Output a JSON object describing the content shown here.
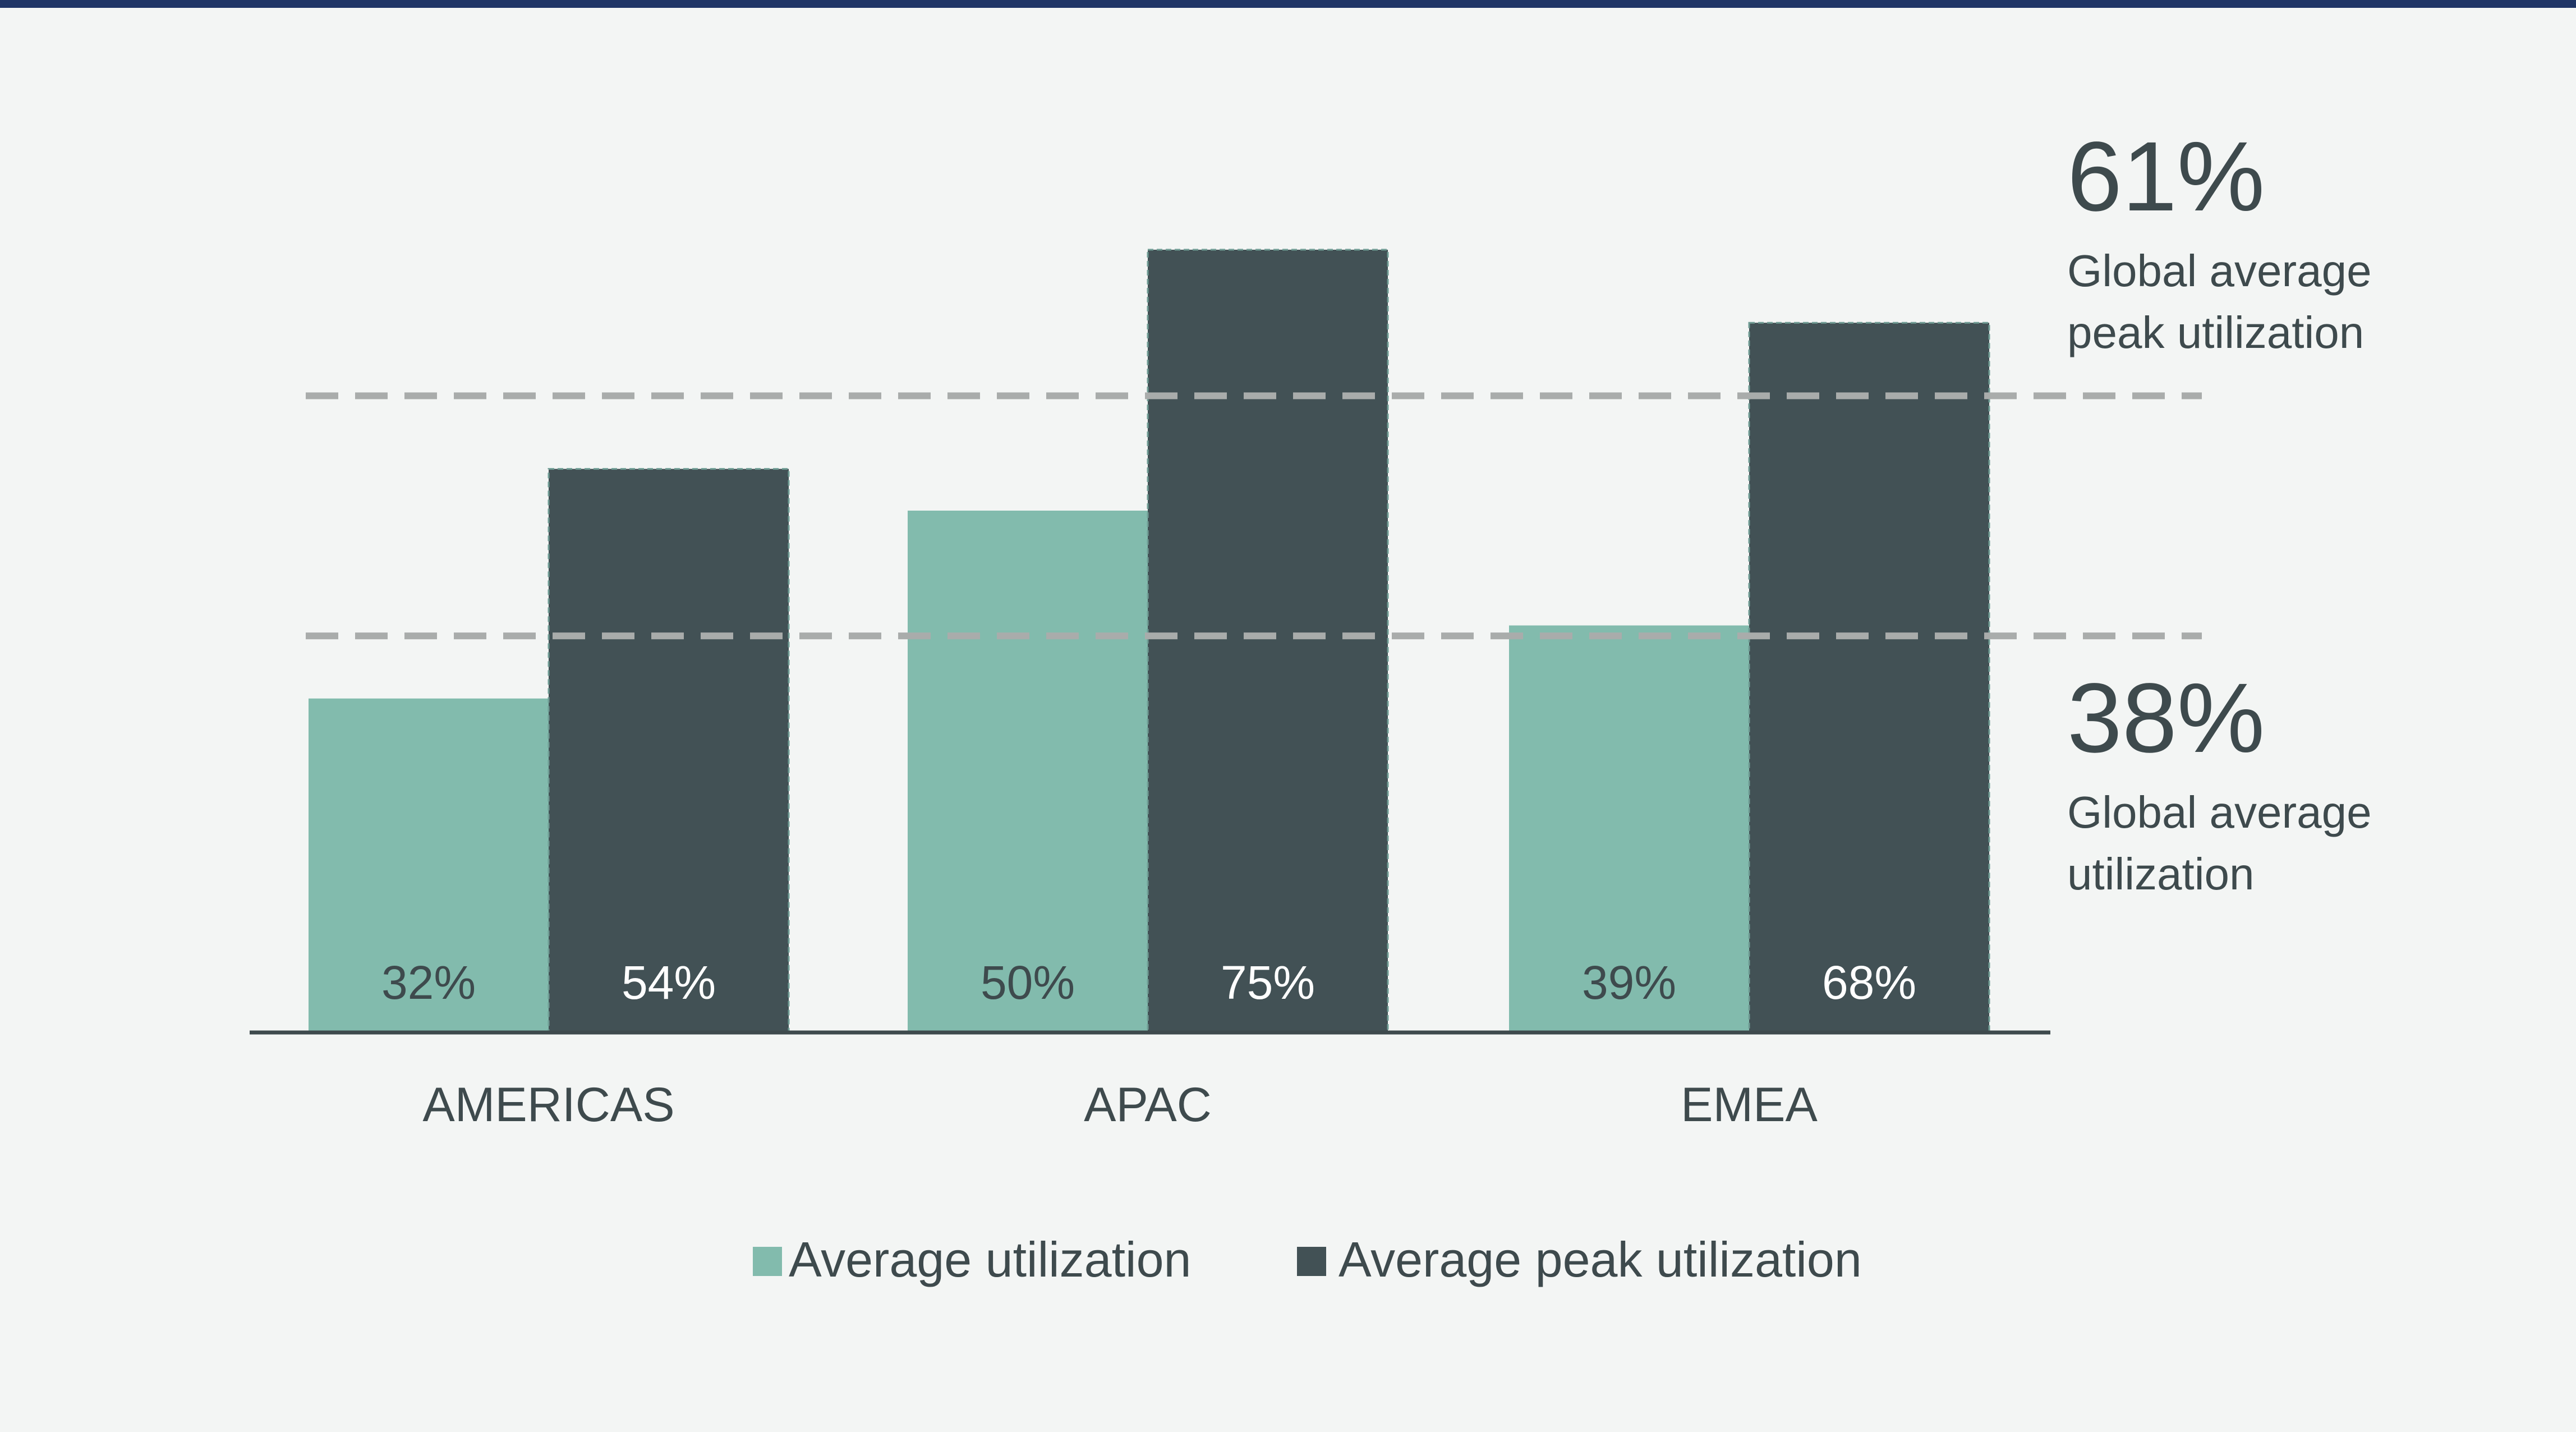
{
  "colors": {
    "background": "#f3f5f4",
    "top_rule": "#1f3566",
    "avg": "#82bbad",
    "peak": "#425155",
    "dashed_line": "#a9acab",
    "axis": "#3e4a4d",
    "text": "#3e4a4d",
    "label_on_dark": "#ffffff"
  },
  "chart_data": {
    "type": "bar",
    "categories": [
      "AMERICAS",
      "APAC",
      "EMEA"
    ],
    "series": [
      {
        "name": "Average utilization",
        "values": [
          32,
          50,
          39
        ],
        "labels": [
          "32%",
          "50%",
          "39%"
        ]
      },
      {
        "name": "Average peak utilization",
        "values": [
          54,
          75,
          68
        ],
        "labels": [
          "54%",
          "75%",
          "68%"
        ]
      }
    ],
    "ylim": [
      0,
      100
    ],
    "grid": false,
    "legend_position": "bottom-center",
    "reference_lines": [
      {
        "value": 61,
        "label": "61%",
        "caption_line1": "Global average",
        "caption_line2": "peak utilization"
      },
      {
        "value": 38,
        "label": "38%",
        "caption_line1": "Global average",
        "caption_line2": "utilization"
      }
    ]
  }
}
